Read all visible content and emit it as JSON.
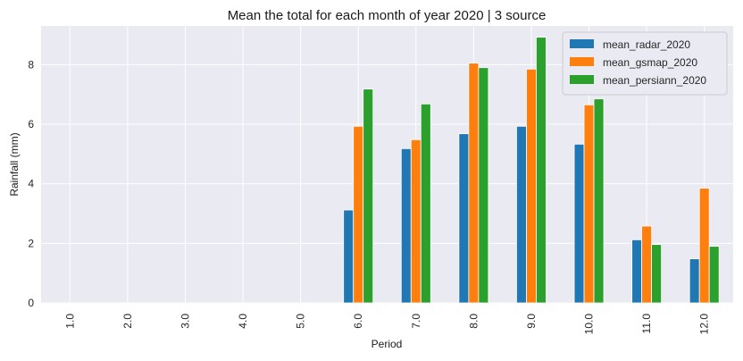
{
  "chart_data": {
    "type": "bar",
    "title": "Mean the total for each month of year 2020 | 3 source",
    "xlabel": "Period",
    "ylabel": "Rainfall (mm)",
    "categories": [
      "1.0",
      "2.0",
      "3.0",
      "4.0",
      "5.0",
      "6.0",
      "7.0",
      "8.0",
      "9.0",
      "10.0",
      "11.0",
      "12.0"
    ],
    "ylim": [
      0,
      9.3
    ],
    "yticks": [
      "0",
      "2",
      "4",
      "6",
      "8"
    ],
    "grid": true,
    "legend_position": "top-right",
    "series": [
      {
        "name": "mean_radar_2020",
        "color": "#1f77b4",
        "values": [
          0,
          0,
          0,
          0,
          0,
          3.12,
          5.18,
          5.68,
          5.93,
          5.33,
          2.12,
          1.48
        ]
      },
      {
        "name": "mean_gsmap_2020",
        "color": "#ff7f0e",
        "values": [
          0,
          0,
          0,
          0,
          0,
          5.93,
          5.48,
          8.05,
          7.85,
          6.65,
          2.58,
          3.85
        ]
      },
      {
        "name": "mean_persiann_2020",
        "color": "#2ca02c",
        "values": [
          0,
          0,
          0,
          0,
          0,
          7.18,
          6.68,
          7.9,
          8.92,
          6.85,
          1.96,
          1.9
        ]
      }
    ]
  }
}
